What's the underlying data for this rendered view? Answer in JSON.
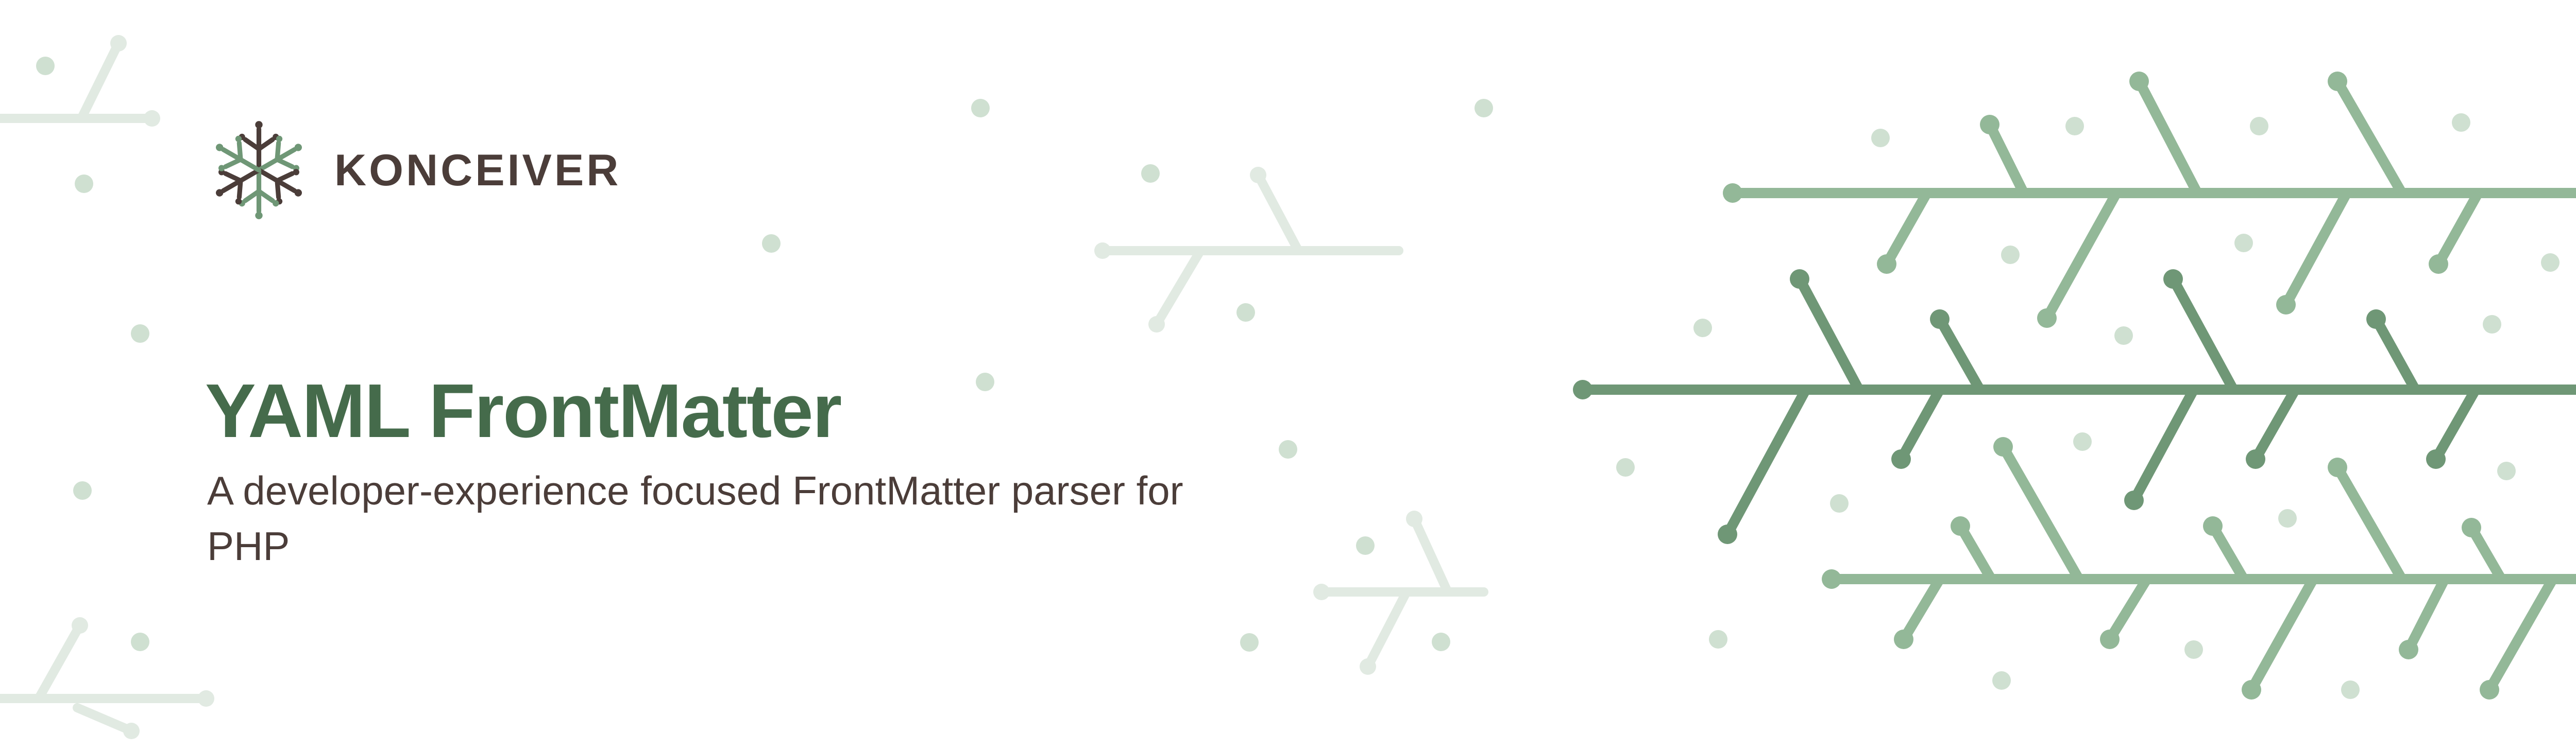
{
  "brand": {
    "name": "KONCEIVER",
    "logo_icon": "snowflake-branch-icon"
  },
  "hero": {
    "title": "YAML FrontMatter",
    "subtitle": "A developer-experience focused FrontMatter parser for PHP"
  },
  "colors": {
    "background": "#ffffff",
    "title": "#456b4b",
    "text": "#4b3d39",
    "branch_dark": "#6f9776",
    "branch_light": "#93b898",
    "branch_faint": "#e1eae2",
    "dot": "#cfe0d1"
  }
}
